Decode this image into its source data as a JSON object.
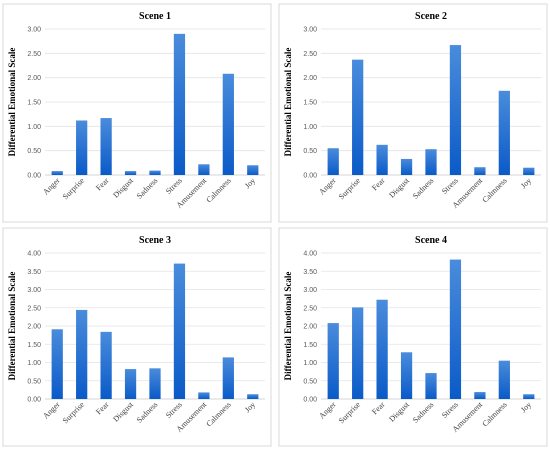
{
  "figure_title": "",
  "colors": {
    "bar_top": "#4a8cdc",
    "bar_bottom": "#0a5ac8",
    "grid": "#e3e3e3",
    "frame": "#d9d9d9"
  },
  "chart_data": [
    {
      "type": "bar",
      "title": "Scene 1",
      "ylabel": "Differential Emotional Scale",
      "xlabel": "",
      "categories": [
        "Anger",
        "Surprise",
        "Fear",
        "Disgust",
        "Sadness",
        "Stress",
        "Amusement",
        "Calmness",
        "Joy"
      ],
      "values": [
        0.08,
        1.12,
        1.17,
        0.08,
        0.09,
        2.9,
        0.22,
        2.08,
        0.2
      ],
      "ylim": [
        0,
        3.0
      ],
      "yticks": [
        "0.00",
        "0.50",
        "1.00",
        "1.50",
        "2.00",
        "2.50",
        "3.00"
      ],
      "grid": true,
      "legend": "none"
    },
    {
      "type": "bar",
      "title": "Scene 2",
      "ylabel": "Differential Emotional  Scale",
      "xlabel": "",
      "categories": [
        "Anger",
        "Surprise",
        "Fear",
        "Disgust",
        "Sadness",
        "Stress",
        "Amusement",
        "Calmness",
        "Joy"
      ],
      "values": [
        0.55,
        2.37,
        0.62,
        0.33,
        0.53,
        2.67,
        0.16,
        1.73,
        0.15
      ],
      "ylim": [
        0,
        3.0
      ],
      "yticks": [
        "0.00",
        "0.50",
        "1.00",
        "1.50",
        "2.00",
        "2.50",
        "3.00"
      ],
      "grid": true,
      "legend": "none"
    },
    {
      "type": "bar",
      "title": "Scene 3",
      "ylabel": "Differential Emotional Scale",
      "xlabel": "",
      "categories": [
        "Anger",
        "Surprise",
        "Fear",
        "Disgust",
        "Sadness",
        "Stress",
        "Amusement",
        "Calmness",
        "Joy"
      ],
      "values": [
        1.91,
        2.44,
        1.84,
        0.82,
        0.84,
        3.71,
        0.18,
        1.14,
        0.13
      ],
      "ylim": [
        0,
        4.0
      ],
      "yticks": [
        "0.00",
        "0.50",
        "1.00",
        "1.50",
        "2.00",
        "2.50",
        "3.00",
        "3.50",
        "4.00"
      ],
      "grid": true,
      "legend": "none"
    },
    {
      "type": "bar",
      "title": "Scene 4",
      "ylabel": "Differential Emotional Scale",
      "xlabel": "",
      "categories": [
        "Anger",
        "Surprise",
        "Fear",
        "Disgust",
        "Sadness",
        "Stress",
        "Amusement",
        "Calmness",
        "Joy"
      ],
      "values": [
        2.08,
        2.51,
        2.72,
        1.28,
        0.71,
        3.82,
        0.19,
        1.05,
        0.13
      ],
      "ylim": [
        0,
        4.0
      ],
      "yticks": [
        "0.00",
        "0.50",
        "1.00",
        "1.50",
        "2.00",
        "2.50",
        "3.00",
        "3.50",
        "4.00"
      ],
      "grid": true,
      "legend": "none"
    }
  ]
}
